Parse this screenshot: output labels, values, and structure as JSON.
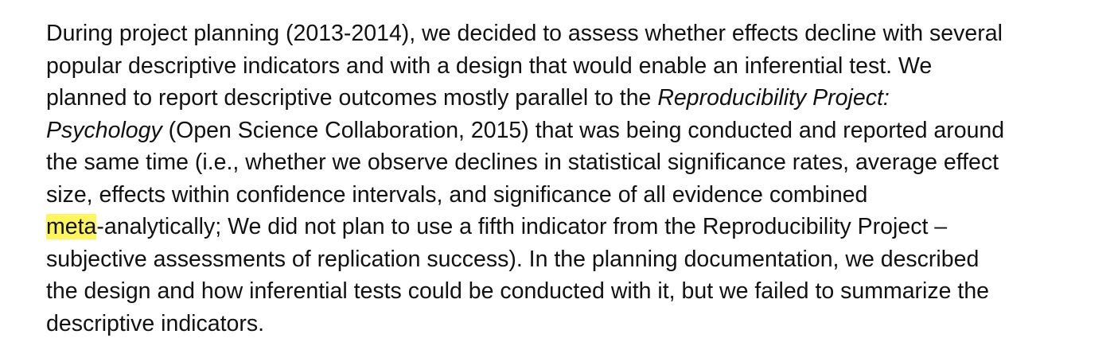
{
  "paragraph": {
    "l1": "During project planning (2013-2014), we decided to assess whether effects decline with several",
    "l2": "popular descriptive indicators and with a design that would enable an inferential test. We",
    "l3_a": "planned to report descriptive outcomes mostly parallel to the ",
    "l3_italic": "Reproducibility Project:",
    "l4_italic": "Psychology",
    "l4_b": " (Open Science Collaboration, 2015) that was being conducted and reported around",
    "l5": "the same time (i.e., whether we observe declines in statistical significance rates, average effect",
    "l6": "size, effects within confidence intervals, and significance of all evidence combined",
    "l7_highlight": "meta",
    "l7_b": "-analytically; We did not plan to use a fifth indicator from the Reproducibility Project –",
    "l8": "subjective assessments of replication success). In the planning documentation, we described",
    "l9": "the design and how inferential tests could be conducted with it, but we failed to summarize the",
    "l10": "descriptive indicators."
  },
  "colors": {
    "highlight": "#fef65b",
    "text": "#111111",
    "background": "#ffffff"
  }
}
